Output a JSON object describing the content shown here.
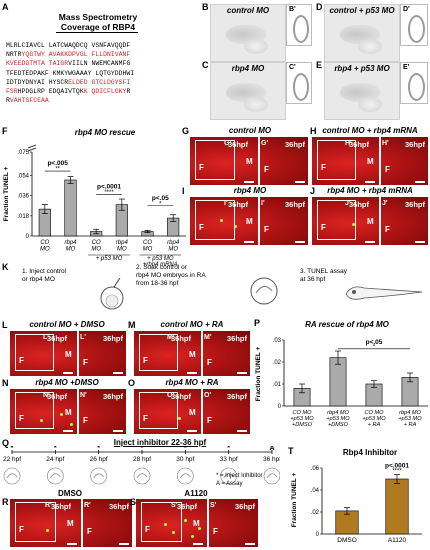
{
  "panel_letters": [
    "A",
    "B",
    "C",
    "D",
    "E",
    "F",
    "G",
    "H",
    "I",
    "J",
    "K",
    "L",
    "M",
    "N",
    "O",
    "P",
    "Q",
    "R",
    "S",
    "T"
  ],
  "panelA": {
    "title_line1": "Mass Spectrometry",
    "title_line2": "Coverage of RBP4",
    "seq_lines": [
      [
        {
          "t": "MLRLCIAVCL LATCWAQDCQ VSNFAVQQDF",
          "r": false
        }
      ],
      [
        {
          "t": "NRTR",
          "r": false
        },
        {
          "t": "YQGTWY AVAKKDPVGL FLLDNIVANF",
          "r": true
        }
      ],
      [
        {
          "t": "KVEEDGTMTA TAIGR",
          "r": true
        },
        {
          "t": "VIILN NWEMCANMFG",
          "r": false
        }
      ],
      [
        {
          "t": "TFEDTEDPAKF KMKYWGAAAY LQTGYDDHWI",
          "r": false
        }
      ],
      [
        {
          "t": "IDTDYDNYAI HYSCR",
          "r": false
        },
        {
          "t": "ELDED GTCLDGYSFI",
          "r": true
        }
      ],
      [
        {
          "t": "FSR",
          "r": true
        },
        {
          "t": "HPDGLRP EDQAIVTQK",
          "r": false
        },
        {
          "t": "K QDICFLGKY",
          "r": true
        },
        {
          "t": "R",
          "r": false
        }
      ],
      [
        {
          "t": "R",
          "r": false
        },
        {
          "t": "VAHTGFCEAA",
          "r": true
        }
      ]
    ]
  },
  "embryos": {
    "B": {
      "label": "control MO",
      "inset": "B'"
    },
    "C": {
      "label": "rbp4 MO",
      "inset": "C'"
    },
    "D": {
      "label": "control + p53 MO",
      "inset": "D'"
    },
    "E": {
      "label": "rbp4 + p53 MO",
      "inset": "E'"
    }
  },
  "chartF": {
    "title": "rbp4 MO rescue",
    "ylabel": "Fraction TUNEL +",
    "sig": [
      "p<.005",
      "p<.0001",
      "p<.05"
    ],
    "stars": [
      "**",
      "****",
      "*"
    ],
    "group_labels": [
      "+ p53 MO",
      "+ p53 MO\n+rbp4 mRNA"
    ]
  },
  "chartP": {
    "title": "RA rescue of rbp4 MO",
    "ylabel": "Fraction TUNEL +",
    "sig": "p<.05",
    "star": "*"
  },
  "chartT": {
    "title": "Rbp4 Inhibitor",
    "ylabel": "Fraction TUNEL +",
    "sig": "p<.0001",
    "star": "****"
  },
  "chart_data": [
    {
      "type": "bar",
      "title": "rbp4 MO rescue",
      "ylabel": "Fraction TUNEL +",
      "ylim": [
        0,
        0.075
      ],
      "y_ticks": [
        ".075",
        ".054",
        ".036",
        ".018",
        "0"
      ],
      "y_tick_values": [
        0.075,
        0.054,
        0.036,
        0.018,
        0
      ],
      "categories": [
        "CO\nMO",
        "rbp4\nMO",
        "CO\nMO",
        "rbp4\nMO",
        "CO\nMO",
        "rbp4\nMO"
      ],
      "values": [
        0.024,
        0.05,
        0.004,
        0.028,
        0.004,
        0.016
      ],
      "errors": [
        0.004,
        0.003,
        0.002,
        0.005,
        0.001,
        0.003
      ],
      "bar_color": "#aaaaaa",
      "axis_break": true
    },
    {
      "type": "bar",
      "title": "RA rescue of rbp4 MO",
      "ylabel": "Fraction TUNEL +",
      "ylim": [
        0,
        0.03
      ],
      "y_ticks": [
        ".03",
        ".02",
        ".01",
        "0"
      ],
      "y_tick_values": [
        0.03,
        0.02,
        0.01,
        0
      ],
      "categories": [
        "CO MO\n+p53 MO\n+DMSO",
        "rbp4 MO\n+p53 MO\n+DMSO",
        "CO MO\n+p53 MO\n+ RA",
        "rbp4 MO\n+p53 MO\n+ RA"
      ],
      "values": [
        0.008,
        0.022,
        0.01,
        0.013
      ],
      "errors": [
        0.002,
        0.003,
        0.0015,
        0.002
      ],
      "bar_color": "#aaaaaa"
    },
    {
      "type": "bar",
      "title": "Rbp4 Inhibitor",
      "ylabel": "Fraction TUNEL +",
      "ylim": [
        0,
        0.06
      ],
      "y_ticks": [
        ".06",
        ".04",
        ".02",
        "0"
      ],
      "y_tick_values": [
        0.06,
        0.04,
        0.02,
        0
      ],
      "categories": [
        "DMSO",
        "A1120"
      ],
      "values": [
        0.021,
        0.05
      ],
      "errors": [
        0.003,
        0.004
      ],
      "bar_color": "#b07a1f"
    }
  ],
  "red_panels": {
    "G": {
      "title": "control MO",
      "hpf": "36hpf",
      "box": "G'",
      "sub": "G'"
    },
    "H": {
      "title": "control MO + rbp4 mRNA",
      "hpf": "36hpf",
      "box": "H'",
      "sub": "H'"
    },
    "I": {
      "title": "rbp4 MO",
      "hpf": "36hpf",
      "box": "I'",
      "sub": "I'"
    },
    "J": {
      "title": "rbp4 MO + rbp4 mRNA",
      "hpf": "36hpf",
      "box": "J'",
      "sub": "J'"
    },
    "L": {
      "title": "control MO + DMSO",
      "hpf": "36hpf",
      "box": "L'",
      "sub": "L'"
    },
    "M": {
      "title": "control MO + RA",
      "hpf": "36hpf",
      "box": "M'",
      "sub": "M'"
    },
    "N": {
      "title": "rbp4 MO +DMSO",
      "hpf": "36hpf",
      "box": "N'",
      "sub": "N'"
    },
    "O": {
      "title": "rbp4 MO + RA",
      "hpf": "36hpf",
      "box": "O'",
      "sub": "O'"
    },
    "R": {
      "title": "DMSO",
      "hpf": "36hpf",
      "box": "R'",
      "sub": "R'"
    },
    "S": {
      "title": "A1120",
      "hpf": "36hpf",
      "box": "S'",
      "sub": "S'"
    }
  },
  "markers": {
    "F": "F",
    "M": "M"
  },
  "panelK": {
    "step1": "1. Inject control\nor rbp4 MO",
    "step2": "2. Soak control or\nrbp4 MO embryos in RA\nfrom 18-36 hpf",
    "step3": "3. TUNEL assay\nat 36 hpf"
  },
  "panelQ": {
    "title": "Inject inhibitor 22-36 hpf",
    "times": [
      "22 hpf",
      "24 hpf",
      "26 hpf",
      "28 hpf",
      "30 hpf",
      "33 hpf",
      "36 hpf"
    ],
    "legend1": "* = Inject Inhibitor",
    "legend2": "A = Assay",
    "assay": "A"
  }
}
